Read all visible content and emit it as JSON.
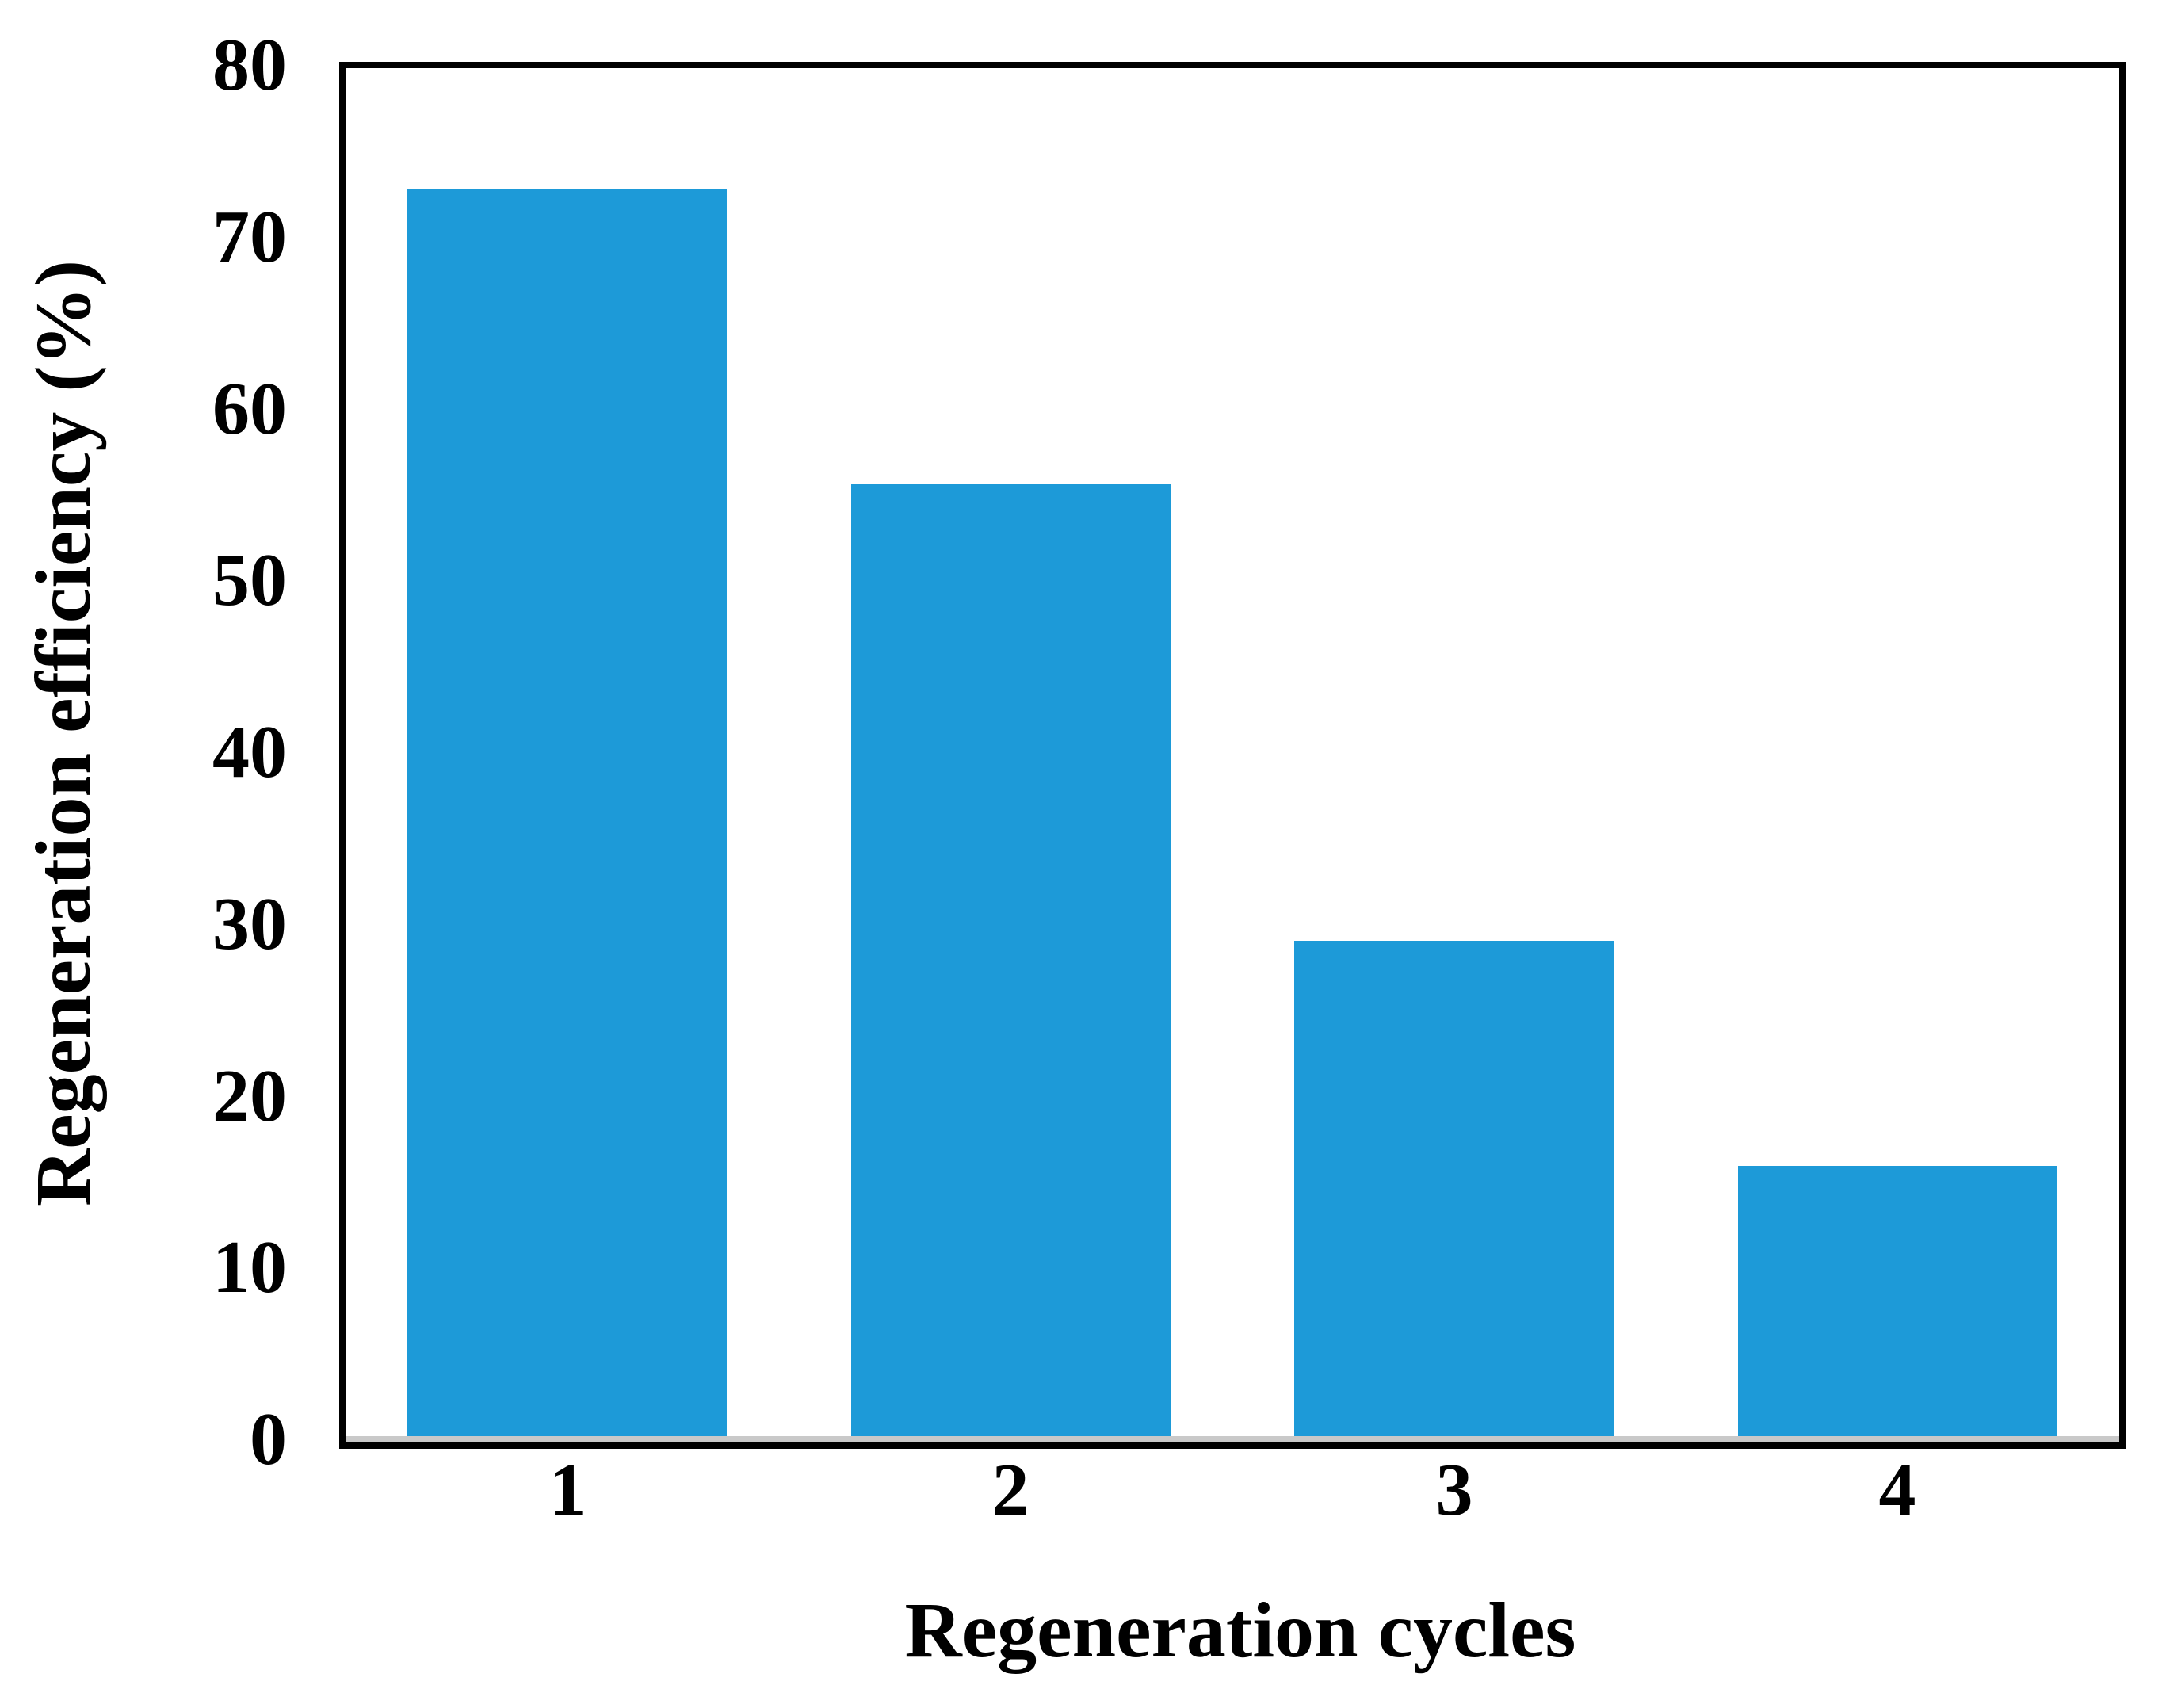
{
  "chart_data": {
    "type": "bar",
    "title": "",
    "categories": [
      "1",
      "2",
      "3",
      "4"
    ],
    "values": [
      73,
      55.8,
      29.2,
      16.1
    ],
    "xlabel": "Regeneration cycles",
    "ylabel": "Regeneration efficiency (%)",
    "ylim": [
      0,
      80
    ],
    "yticks": [
      0,
      10,
      20,
      30,
      40,
      50,
      60,
      70,
      80
    ],
    "grid": false,
    "legend": false,
    "bar_color": "#1d9ad8",
    "frame_color": "#000000",
    "baseline_shadow_color": "#c9c9c9",
    "text_color": "#000000",
    "bar_width_fraction": 0.72
  }
}
